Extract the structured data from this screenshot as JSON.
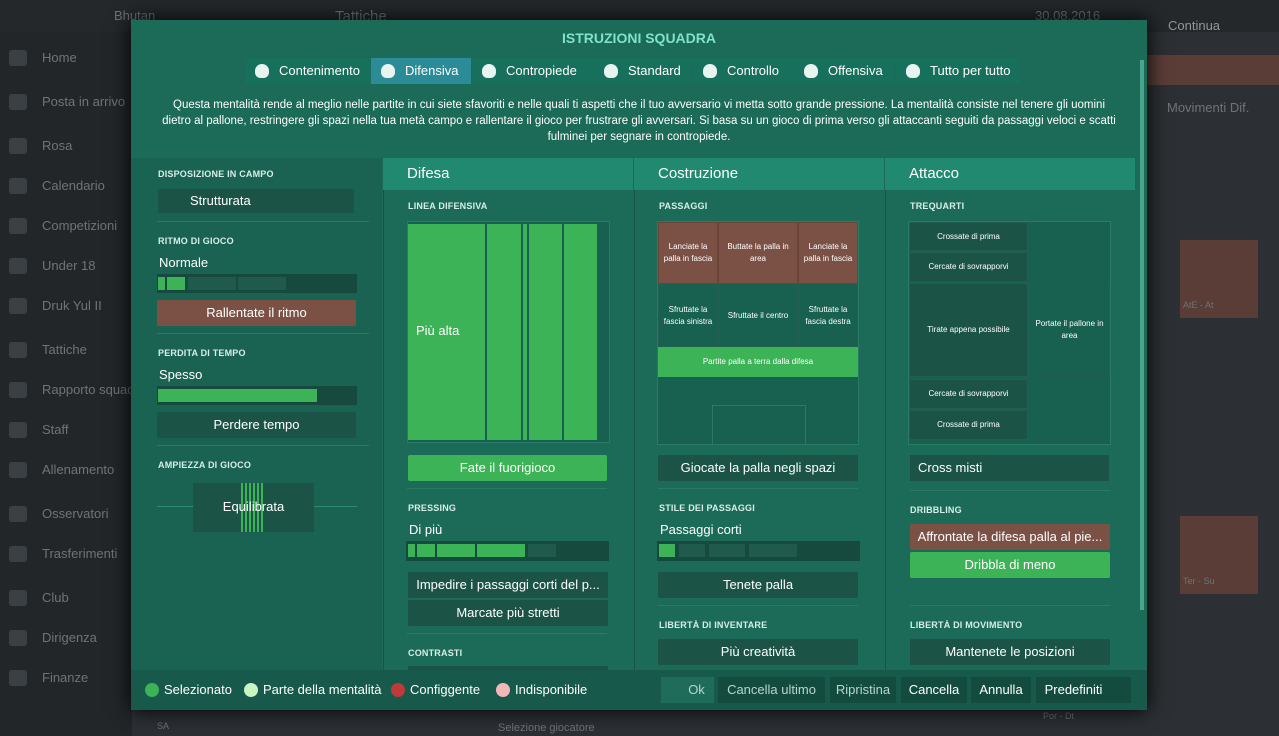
{
  "top_bar": {
    "team": "Bhutan",
    "screen": "Tattiche",
    "date": "30.08.2016",
    "continue": "Continua"
  },
  "sidebar": [
    "Home",
    "Posta in arrivo",
    "Rosa",
    "Calendario",
    "Competizioni",
    "Under 18",
    "Druk Yul II",
    "Tattiche",
    "Rapporto squad",
    "Staff",
    "Allenamento",
    "Osservatori",
    "Trasferimenti",
    "Club",
    "Dirigenza",
    "Finanze"
  ],
  "background": {
    "filter": "Movimenti Dif.",
    "roles": [
      "AtE - At",
      "Ter - Su",
      "Por - Dt"
    ],
    "bottom": [
      "SA",
      "Selezione giocatore"
    ]
  },
  "modal": {
    "title": "ISTRUZIONI SQUADRA",
    "tabs": [
      "Contenimento",
      "Difensiva",
      "Contropiede",
      "Standard",
      "Controllo",
      "Offensiva",
      "Tutto per tutto"
    ],
    "description": "Questa mentalità rende al meglio nelle partite in cui siete sfavoriti e nelle quali ti aspetti che il tuo avversario vi metta sotto grande pressione. La mentalità consiste nel tenere gli uomini dietro al pallone, restringere gli spazi nella tua metà campo e rallentare il gioco per frustrare gli avversari. Si basa su un gioco di prima verso gli attaccanti seguiti da passaggi veloci e scatti fulminei per segnare in contropiede.",
    "settings": {
      "formation_label": "DISPOSIZIONE IN CAMPO",
      "formation": "Strutturata",
      "tempo_label": "RITMO DI GIOCO",
      "tempo": "Normale",
      "tempo_button": "Rallentate il ritmo",
      "time_wasting_label": "PERDITA DI TEMPO",
      "time_wasting": "Spesso",
      "time_wasting_button": "Perdere tempo",
      "width_label": "AMPIEZZA DI GIOCO",
      "width": "Equilibrata"
    },
    "defense": {
      "title": "Difesa",
      "line_label": "LINEA DIFENSIVA",
      "line": "Più alta",
      "offside_button": "Fate il fuorigioco",
      "pressing_label": "PRESSING",
      "pressing": "Di più",
      "pressing_buttons": [
        "Impedire i passaggi corti del p...",
        "Marcate più stretti"
      ],
      "tackling_label": "CONTRASTI"
    },
    "buildup": {
      "title": "Costruzione",
      "passing_label": "PASSAGGI",
      "zones": [
        "Lanciate la palla in fascia",
        "Buttate la palla in area",
        "Lanciate la palla in fascia",
        "Sfruttate la fascia sinistra",
        "Sfruttate il centro",
        "Sfruttate la fascia destra",
        "Partite palla a terra dalla difesa"
      ],
      "passing_button": "Giocate la palla negli spazi",
      "style_label": "STILE DEI PASSAGGI",
      "style": "Passaggi corti",
      "style_button": "Tenete palla",
      "creative_label": "LIBERTÀ DI INVENTARE",
      "creative_button": "Più creatività"
    },
    "attack": {
      "title": "Attacco",
      "final_third_label": "TREQUARTI",
      "zones": [
        "Crossate di prima",
        "Cercate di sovrapporvi",
        "Tirate appena possibile",
        "Cercate di sovrapporvi",
        "Crossate di prima",
        "Portate il pallone in area"
      ],
      "crossing": "Cross misti",
      "dribbling_label": "DRIBBLING",
      "dribbling_buttons": [
        "Affrontate la difesa palla al pie...",
        "Dribbla di meno"
      ],
      "movement_label": "LIBERTÀ DI MOVIMENTO",
      "movement_button": "Mantenete le posizioni"
    },
    "legend": [
      "Selezionato",
      "Parte della mentalità",
      "Configgente",
      "Indisponibile"
    ],
    "actions": [
      "Ok",
      "Cancella ultimo",
      "Ripristina",
      "Cancella",
      "Annulla",
      "Predefiniti"
    ]
  }
}
